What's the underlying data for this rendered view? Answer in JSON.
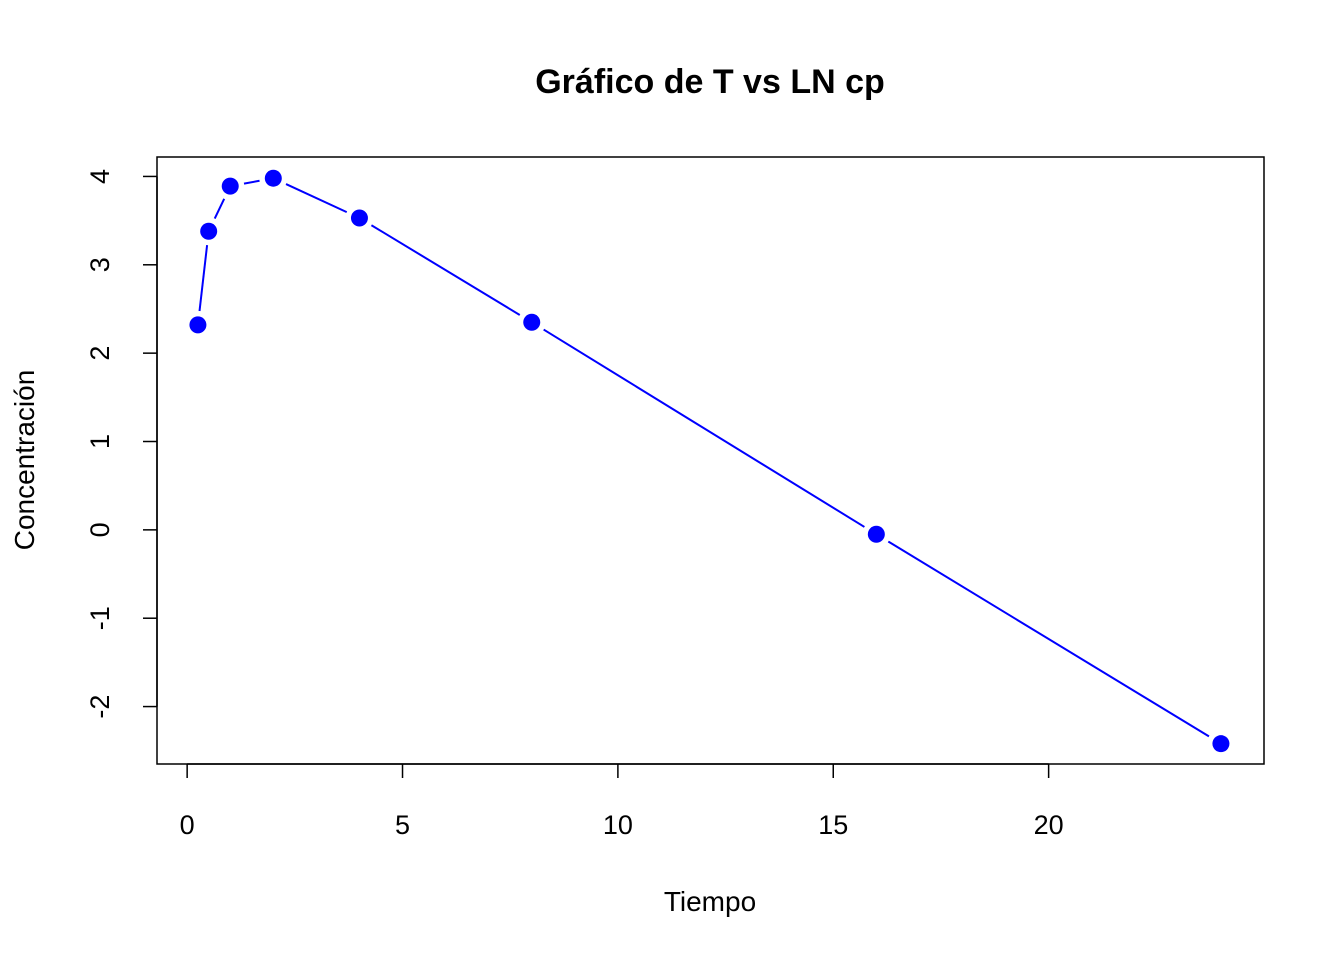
{
  "chart_data": {
    "type": "line",
    "title": "Gráfico de T vs LN cp",
    "xlabel": "Tiempo",
    "ylabel": "Concentración",
    "xlim": [
      -0.7,
      25
    ],
    "ylim": [
      -2.65,
      4.22
    ],
    "xticks": [
      0,
      5,
      10,
      15,
      20
    ],
    "yticks": [
      -2,
      -1,
      0,
      1,
      2,
      3,
      4
    ],
    "grid": false,
    "series_color": "#0000ff",
    "points": [
      {
        "x": 0.25,
        "y": 2.32
      },
      {
        "x": 0.5,
        "y": 3.38
      },
      {
        "x": 1,
        "y": 3.89
      },
      {
        "x": 2,
        "y": 3.98
      },
      {
        "x": 4,
        "y": 3.53
      },
      {
        "x": 8,
        "y": 2.35
      },
      {
        "x": 16,
        "y": -0.05
      },
      {
        "x": 24,
        "y": -2.42
      }
    ]
  }
}
